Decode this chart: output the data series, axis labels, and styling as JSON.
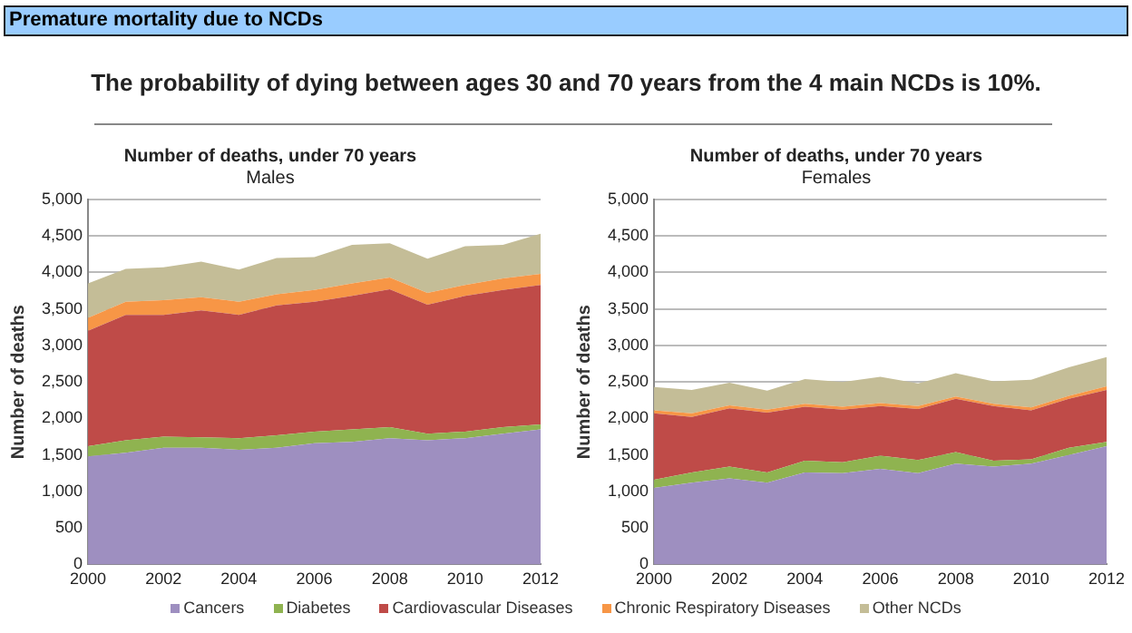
{
  "chart_data": [
    {
      "type": "area",
      "title": "Number of deaths, under 70 years",
      "subtitle": "Males",
      "ylabel": "Number of deaths",
      "annotations": [
        "Premature mortality due to NCDs",
        "The probability of dying between ages 30 and 70 years from the 4 main NCDs is 10%."
      ],
      "stacked": true,
      "grid": "y",
      "x": [
        2000,
        2001,
        2002,
        2003,
        2004,
        2005,
        2006,
        2007,
        2008,
        2009,
        2010,
        2011,
        2012
      ],
      "xlim": [
        2000,
        2012
      ],
      "xticks": [
        2000,
        2002,
        2004,
        2006,
        2008,
        2010,
        2012
      ],
      "ylim": [
        0,
        5000
      ],
      "yticks": [
        {
          "value": 0,
          "label": "0"
        },
        {
          "value": 500,
          "label": "500"
        },
        {
          "value": 1000,
          "label": "1,000"
        },
        {
          "value": 1500,
          "label": "1,500"
        },
        {
          "value": 2000,
          "label": "2,000"
        },
        {
          "value": 2500,
          "label": "2,500"
        },
        {
          "value": 3000,
          "label": "3,000"
        },
        {
          "value": 3500,
          "label": "3,500"
        },
        {
          "value": 4000,
          "label": "4,000"
        },
        {
          "value": 4500,
          "label": "4,500"
        },
        {
          "value": 5000,
          "label": "5,000"
        }
      ],
      "series": [
        {
          "color": "#9e8fc0",
          "values": [
            1480,
            1530,
            1600,
            1600,
            1570,
            1600,
            1660,
            1680,
            1730,
            1700,
            1730,
            1790,
            1850
          ]
        },
        {
          "color": "#8fb350",
          "values": [
            140,
            170,
            150,
            140,
            160,
            170,
            160,
            170,
            150,
            90,
            90,
            90,
            70
          ]
        },
        {
          "color": "#bf4b48",
          "values": [
            1580,
            1720,
            1670,
            1740,
            1690,
            1780,
            1780,
            1830,
            1890,
            1770,
            1860,
            1880,
            1910
          ]
        },
        {
          "color": "#f79646",
          "values": [
            180,
            180,
            200,
            180,
            180,
            150,
            160,
            170,
            160,
            160,
            150,
            160,
            150
          ]
        },
        {
          "color": "#c4bd97",
          "values": [
            470,
            450,
            450,
            490,
            440,
            500,
            450,
            530,
            470,
            470,
            530,
            460,
            550
          ]
        }
      ]
    },
    {
      "type": "area",
      "title": "Number of deaths, under 70 years",
      "subtitle": "Females",
      "ylabel": "Number of deaths",
      "stacked": true,
      "grid": "y",
      "legend": "bottom",
      "x": [
        2000,
        2001,
        2002,
        2003,
        2004,
        2005,
        2006,
        2007,
        2008,
        2009,
        2010,
        2011,
        2012
      ],
      "xlim": [
        2000,
        2012
      ],
      "xticks": [
        2000,
        2002,
        2004,
        2006,
        2008,
        2010,
        2012
      ],
      "ylim": [
        0,
        5000
      ],
      "yticks": [
        {
          "value": 0,
          "label": "0"
        },
        {
          "value": 500,
          "label": "500"
        },
        {
          "value": 1000,
          "label": "1,000"
        },
        {
          "value": 1500,
          "label": "1,500"
        },
        {
          "value": 2000,
          "label": "2,000"
        },
        {
          "value": 2500,
          "label": "2,500"
        },
        {
          "value": 3000,
          "label": "3,000"
        },
        {
          "value": 3500,
          "label": "3,500"
        },
        {
          "value": 4000,
          "label": "4,000"
        },
        {
          "value": 4500,
          "label": "4,500"
        },
        {
          "value": 5000,
          "label": "5,000"
        }
      ],
      "series": [
        {
          "name": "Cancers",
          "color": "#9e8fc0",
          "values": [
            1050,
            1120,
            1180,
            1120,
            1260,
            1250,
            1310,
            1250,
            1380,
            1340,
            1380,
            1500,
            1620
          ]
        },
        {
          "name": "Diabetes",
          "color": "#8fb350",
          "values": [
            110,
            140,
            160,
            140,
            160,
            150,
            180,
            180,
            160,
            80,
            60,
            100,
            60
          ]
        },
        {
          "name": "Cardiovascular Diseases",
          "color": "#bf4b48",
          "values": [
            910,
            760,
            800,
            820,
            740,
            720,
            680,
            700,
            730,
            750,
            670,
            670,
            710
          ]
        },
        {
          "name": "Chronic Respiratory Diseases",
          "color": "#f79646",
          "values": [
            40,
            50,
            40,
            40,
            40,
            40,
            40,
            40,
            30,
            30,
            40,
            40,
            50
          ]
        },
        {
          "name": "Other NCDs",
          "color": "#c4bd97",
          "values": [
            320,
            320,
            310,
            260,
            340,
            340,
            360,
            310,
            320,
            310,
            380,
            390,
            400
          ]
        }
      ]
    }
  ]
}
